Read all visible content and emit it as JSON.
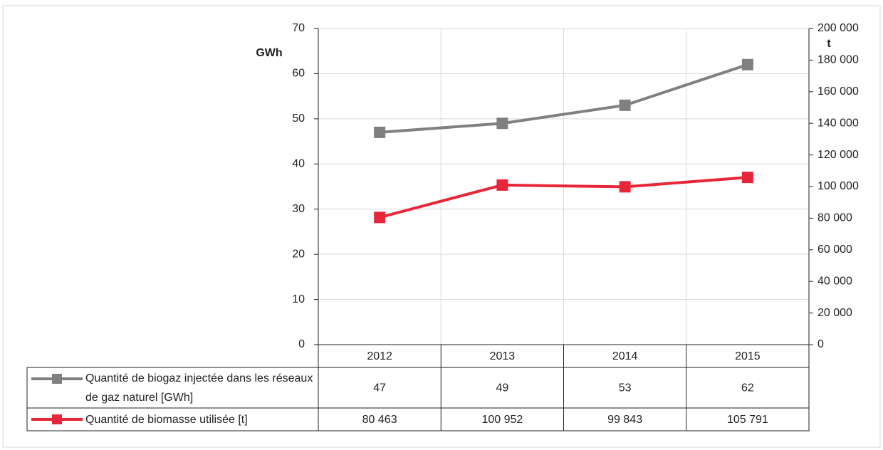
{
  "chart_data": {
    "type": "line",
    "y_label": "GWh",
    "y2_label": "t",
    "categories": [
      "2012",
      "2013",
      "2014",
      "2015"
    ],
    "series": [
      {
        "name": "Quantité de biogaz injectée dans les réseaux de gaz naturel [GWh]",
        "color": "#808080",
        "values": [
          47,
          49,
          53,
          62
        ]
      },
      {
        "name": "Quantité de biomasse utilisée [t]",
        "color": "#e8263a",
        "axis": "y2",
        "values": [
          80463,
          100952,
          99843,
          105791
        ],
        "value_labels": [
          "80 463",
          "100 952",
          "99 843",
          "105 791"
        ]
      }
    ],
    "ylim": [
      0,
      70
    ],
    "yticks": [
      0,
      10,
      20,
      30,
      40,
      50,
      60,
      70
    ],
    "y2lim": [
      0,
      200000
    ],
    "y2ticks": [
      0,
      {
        "value": 20000,
        "label": "20 000"
      },
      {
        "value": 40000,
        "label": "40 000"
      },
      {
        "value": 60000,
        "label": "60 000"
      },
      {
        "value": 80000,
        "label": "80 000"
      },
      {
        "value": 100000,
        "label": "100 000"
      },
      {
        "value": 120000,
        "label": "120 000"
      },
      {
        "value": 140000,
        "label": "140 000"
      },
      {
        "value": 160000,
        "label": "160 000"
      },
      {
        "value": 180000,
        "label": "180 000"
      },
      {
        "value": 200000,
        "label": "200 000"
      }
    ],
    "grid": true,
    "data_table": true
  }
}
